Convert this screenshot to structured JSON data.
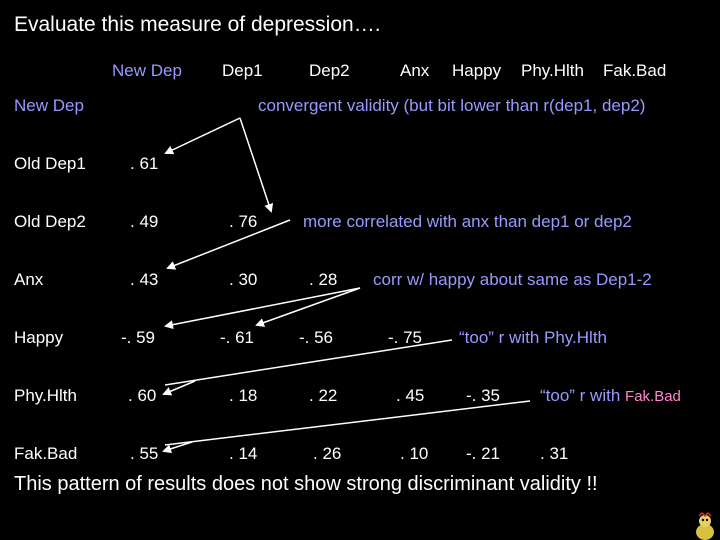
{
  "title": "Evaluate this measure of depression….",
  "columns": [
    "New Dep",
    "Dep1",
    "Dep2",
    "Anx",
    "Happy",
    "Phy.Hlth",
    "Fak.Bad"
  ],
  "rows": [
    {
      "label": "New Dep",
      "values": []
    },
    {
      "label": "Old Dep1",
      "values": [
        ". 61"
      ]
    },
    {
      "label": "Old Dep2",
      "values": [
        ". 49",
        ". 76"
      ]
    },
    {
      "label": "Anx",
      "values": [
        ". 43",
        ". 30",
        ". 28"
      ]
    },
    {
      "label": "Happy",
      "values": [
        "-. 59",
        "-. 61",
        "-. 56",
        "-. 75"
      ]
    },
    {
      "label": "Phy.Hlth",
      "values": [
        ". 60",
        ". 18",
        ". 22",
        ". 45",
        "-. 35"
      ]
    },
    {
      "label": "Fak.Bad",
      "values": [
        ". 55",
        ". 14",
        ". 26",
        ". 10",
        "-. 21",
        ". 31"
      ]
    }
  ],
  "annotations": {
    "convergent": "convergent validity (but bit lower than r(dep1, dep2)",
    "anx": "more correlated with anx than dep1 or dep2",
    "happy": "corr w/ happy about same as Dep1-2",
    "physhealth": "“too” r with Phy.Hlth",
    "fakbad_prefix": "“too” r with ",
    "fakbad_suffix": "Fak.Bad"
  },
  "footer": "This pattern of results does not show strong discriminant validity !!",
  "colors": {
    "background": "#000000",
    "text": "#ffffff",
    "accent": "#9999ff",
    "pink": "#ff88cc"
  }
}
